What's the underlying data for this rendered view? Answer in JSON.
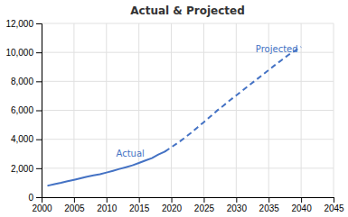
{
  "chart_data": {
    "type": "line",
    "title": "Actual & Projected",
    "series": [
      {
        "color": "#4472C4",
        "line_style": "solid",
        "x": [
          2001,
          2002,
          2003,
          2004,
          2005,
          2006,
          2007,
          2008,
          2009,
          2010,
          2011,
          2012,
          2013,
          2014,
          2015,
          2016,
          2017,
          2018,
          2019
        ],
        "values": [
          800,
          900,
          990,
          1100,
          1200,
          1310,
          1420,
          1510,
          1580,
          1700,
          1820,
          1950,
          2070,
          2200,
          2360,
          2530,
          2700,
          2940,
          3150
        ]
      },
      {
        "color": "#4472C4",
        "line_style": "dashed",
        "x": [
          2019,
          2020,
          2021,
          2022,
          2023,
          2024,
          2025,
          2026,
          2027,
          2028,
          2029,
          2030,
          2031,
          2032,
          2033,
          2034,
          2035,
          2036,
          2037,
          2038,
          2039,
          2040
        ],
        "values": [
          3150,
          3450,
          3750,
          4080,
          4430,
          4810,
          5180,
          5560,
          5960,
          6310,
          6680,
          7030,
          7380,
          7730,
          8080,
          8430,
          8780,
          9130,
          9470,
          9810,
          10100,
          10380
        ]
      }
    ],
    "annotations": [
      {
        "text": "Actual",
        "x": 2011.5,
        "y": 2700,
        "color": "#4472C4"
      },
      {
        "text": "Projected",
        "x": 2033,
        "y": 9900,
        "color": "#4472C4"
      }
    ],
    "xlim": [
      2000,
      2045
    ],
    "xticks": [
      2000,
      2005,
      2010,
      2015,
      2020,
      2025,
      2030,
      2035,
      2040,
      2045
    ],
    "ylim": [
      0,
      12000
    ],
    "yticks": [
      0,
      {
        "value": 2000,
        "label": "2,000"
      },
      {
        "value": 4000,
        "label": "4,000"
      },
      {
        "value": 6000,
        "label": "6,000"
      },
      {
        "value": 8000,
        "label": "8,000"
      },
      {
        "value": 10000,
        "label": "10,000"
      },
      {
        "value": 12000,
        "label": "12,000"
      }
    ],
    "grid": true
  }
}
